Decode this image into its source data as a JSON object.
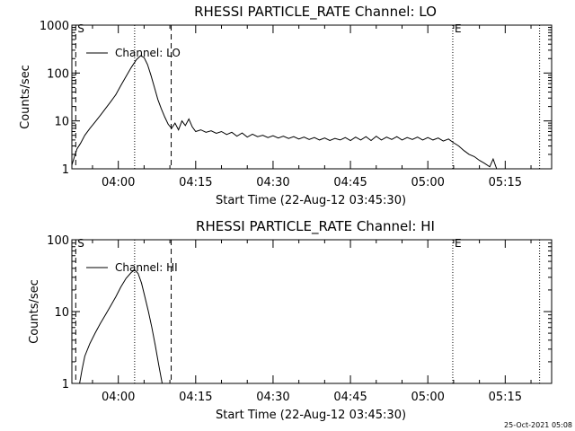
{
  "footer": {
    "stamp": "25-Oct-2021 05:08"
  },
  "chart_data": [
    {
      "type": "line",
      "title": "RHESSI PARTICLE_RATE Channel: LO",
      "xlabel": "Start Time (22-Aug-12 03:45:30)",
      "ylabel": "Counts/sec",
      "xlim": [
        "03:51:00",
        "05:24:00"
      ],
      "ylim": [
        1,
        1000
      ],
      "yscale": "log",
      "x_ticks": [
        "04:00",
        "04:15",
        "04:30",
        "04:45",
        "05:00",
        "05:15"
      ],
      "y_ticks": [
        "1",
        "10",
        "100",
        "1000"
      ],
      "legend": {
        "entries": [
          "Channel: LO"
        ],
        "position": "top-left"
      },
      "markers": [
        {
          "time": "03:51:45",
          "style": "dashed",
          "label": "S"
        },
        {
          "time": "04:03:10",
          "style": "dotted",
          "label": ""
        },
        {
          "time": "04:10:15",
          "style": "dashed",
          "label": ""
        },
        {
          "time": "05:04:50",
          "style": "dotted",
          "label": "E"
        },
        {
          "time": "05:21:40",
          "style": "dotted",
          "label": ""
        }
      ],
      "series": [
        {
          "name": "Channel: LO",
          "points": [
            [
              "03:51:00",
              1.2
            ],
            [
              "03:51:30",
              1.8
            ],
            [
              "03:52:00",
              2.6
            ],
            [
              "03:52:40",
              3.4
            ],
            [
              "03:53:30",
              5.0
            ],
            [
              "03:54:30",
              7.0
            ],
            [
              "03:55:30",
              9.5
            ],
            [
              "03:56:30",
              13
            ],
            [
              "03:57:30",
              18
            ],
            [
              "03:58:30",
              25
            ],
            [
              "03:59:30",
              35
            ],
            [
              "04:00:30",
              55
            ],
            [
              "04:01:30",
              85
            ],
            [
              "04:02:30",
              130
            ],
            [
              "04:03:30",
              190
            ],
            [
              "04:04:20",
              230
            ],
            [
              "04:05:00",
              210
            ],
            [
              "04:05:40",
              150
            ],
            [
              "04:06:20",
              90
            ],
            [
              "04:07:00",
              50
            ],
            [
              "04:07:40",
              28
            ],
            [
              "04:08:20",
              18
            ],
            [
              "04:09:00",
              12
            ],
            [
              "04:09:40",
              8.5
            ],
            [
              "04:10:20",
              7.0
            ],
            [
              "04:11:00",
              9.0
            ],
            [
              "04:11:40",
              6.5
            ],
            [
              "04:12:20",
              10
            ],
            [
              "04:13:00",
              8.0
            ],
            [
              "04:13:40",
              11
            ],
            [
              "04:14:20",
              7.5
            ],
            [
              "04:15:00",
              6.0
            ],
            [
              "04:16:00",
              6.5
            ],
            [
              "04:17:00",
              5.8
            ],
            [
              "04:18:00",
              6.2
            ],
            [
              "04:19:00",
              5.5
            ],
            [
              "04:20:00",
              6.0
            ],
            [
              "04:21:00",
              5.2
            ],
            [
              "04:22:00",
              5.8
            ],
            [
              "04:23:00",
              4.8
            ],
            [
              "04:24:00",
              5.6
            ],
            [
              "04:25:00",
              4.6
            ],
            [
              "04:26:00",
              5.3
            ],
            [
              "04:27:00",
              4.7
            ],
            [
              "04:28:00",
              5.0
            ],
            [
              "04:29:00",
              4.5
            ],
            [
              "04:30:00",
              4.9
            ],
            [
              "04:31:00",
              4.4
            ],
            [
              "04:32:00",
              4.8
            ],
            [
              "04:33:00",
              4.3
            ],
            [
              "04:34:00",
              4.7
            ],
            [
              "04:35:00",
              4.2
            ],
            [
              "04:36:00",
              4.6
            ],
            [
              "04:37:00",
              4.1
            ],
            [
              "04:38:00",
              4.5
            ],
            [
              "04:39:00",
              4.0
            ],
            [
              "04:40:00",
              4.4
            ],
            [
              "04:41:00",
              3.9
            ],
            [
              "04:42:00",
              4.3
            ],
            [
              "04:43:00",
              4.0
            ],
            [
              "04:44:00",
              4.5
            ],
            [
              "04:45:00",
              3.9
            ],
            [
              "04:46:00",
              4.6
            ],
            [
              "04:47:00",
              4.0
            ],
            [
              "04:48:00",
              4.7
            ],
            [
              "04:49:00",
              3.9
            ],
            [
              "04:50:00",
              4.8
            ],
            [
              "04:51:00",
              4.0
            ],
            [
              "04:52:00",
              4.6
            ],
            [
              "04:53:00",
              4.1
            ],
            [
              "04:54:00",
              4.7
            ],
            [
              "04:55:00",
              4.0
            ],
            [
              "04:56:00",
              4.5
            ],
            [
              "04:57:00",
              4.1
            ],
            [
              "04:58:00",
              4.6
            ],
            [
              "04:59:00",
              4.0
            ],
            [
              "05:00:00",
              4.5
            ],
            [
              "05:01:00",
              4.0
            ],
            [
              "05:02:00",
              4.4
            ],
            [
              "05:03:00",
              3.8
            ],
            [
              "05:04:00",
              4.2
            ],
            [
              "05:05:00",
              3.5
            ],
            [
              "05:06:00",
              3.0
            ],
            [
              "05:07:00",
              2.4
            ],
            [
              "05:08:00",
              2.0
            ],
            [
              "05:09:00",
              1.8
            ],
            [
              "05:10:00",
              1.5
            ],
            [
              "05:11:00",
              1.3
            ],
            [
              "05:12:00",
              1.1
            ],
            [
              "05:12:40",
              1.6
            ],
            [
              "05:13:20",
              1.0
            ]
          ]
        }
      ]
    },
    {
      "type": "line",
      "title": "RHESSI PARTICLE_RATE Channel: HI",
      "xlabel": "Start Time (22-Aug-12 03:45:30)",
      "ylabel": "Counts/sec",
      "xlim": [
        "03:51:00",
        "05:24:00"
      ],
      "ylim": [
        1,
        100
      ],
      "yscale": "log",
      "x_ticks": [
        "04:00",
        "04:15",
        "04:30",
        "04:45",
        "05:00",
        "05:15"
      ],
      "y_ticks": [
        "1",
        "10",
        "100"
      ],
      "legend": {
        "entries": [
          "Channel: HI"
        ],
        "position": "top-left"
      },
      "markers": [
        {
          "time": "03:51:45",
          "style": "dashed",
          "label": "S"
        },
        {
          "time": "04:03:10",
          "style": "dotted",
          "label": ""
        },
        {
          "time": "04:10:15",
          "style": "dashed",
          "label": ""
        },
        {
          "time": "05:04:50",
          "style": "dotted",
          "label": "E"
        },
        {
          "time": "05:21:40",
          "style": "dotted",
          "label": ""
        }
      ],
      "series": [
        {
          "name": "Channel: HI",
          "points": [
            [
              "03:52:30",
              1.0
            ],
            [
              "03:53:00",
              1.6
            ],
            [
              "03:53:30",
              2.4
            ],
            [
              "03:54:30",
              3.6
            ],
            [
              "03:55:30",
              5.0
            ],
            [
              "03:56:30",
              6.8
            ],
            [
              "03:57:30",
              9.0
            ],
            [
              "03:58:30",
              12
            ],
            [
              "03:59:30",
              16
            ],
            [
              "04:00:30",
              22
            ],
            [
              "04:01:30",
              29
            ],
            [
              "04:02:30",
              35
            ],
            [
              "04:03:10",
              38
            ],
            [
              "04:03:50",
              34
            ],
            [
              "04:04:30",
              25
            ],
            [
              "04:05:10",
              16
            ],
            [
              "04:05:50",
              10
            ],
            [
              "04:06:30",
              6.0
            ],
            [
              "04:07:10",
              3.4
            ],
            [
              "04:07:50",
              1.8
            ],
            [
              "04:08:30",
              1.0
            ]
          ]
        }
      ]
    }
  ]
}
